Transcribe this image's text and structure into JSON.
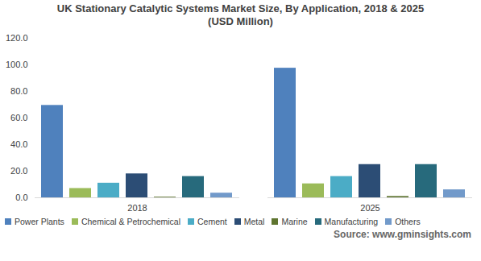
{
  "chart_data": {
    "type": "bar",
    "title": "UK Stationary Catalytic Systems Market Size, By Application, 2018 & 2025",
    "subtitle": "(USD Million)",
    "source": "Source: www.gminsights.com",
    "categories": [
      "2018",
      "2025"
    ],
    "series": [
      {
        "name": "Power Plants",
        "color": "#4f81bd",
        "values": [
          69.5,
          97.5
        ]
      },
      {
        "name": "Chemical & Petrochemical",
        "color": "#9bbb59",
        "values": [
          7,
          10.5
        ]
      },
      {
        "name": "Cement",
        "color": "#4bacc6",
        "values": [
          11,
          16
        ]
      },
      {
        "name": "Metal",
        "color": "#2c4d75",
        "values": [
          18,
          25
        ]
      },
      {
        "name": "Marine",
        "color": "#5f7530",
        "values": [
          0.5,
          1
        ]
      },
      {
        "name": "Manufacturing",
        "color": "#276a7c",
        "values": [
          16,
          25
        ]
      },
      {
        "name": "Others",
        "color": "#729aca",
        "values": [
          3.5,
          6
        ]
      }
    ],
    "ylim": [
      0,
      120
    ],
    "yticks": [
      {
        "value": 0,
        "label": "0.0"
      },
      {
        "value": 20,
        "label": "20.0"
      },
      {
        "value": 40,
        "label": "40.0"
      },
      {
        "value": 60,
        "label": "60.0"
      },
      {
        "value": 80,
        "label": "80.0"
      },
      {
        "value": 100,
        "label": "100.0"
      },
      {
        "value": 120,
        "label": "120.0"
      }
    ],
    "grid": false,
    "legend": "bottom"
  }
}
